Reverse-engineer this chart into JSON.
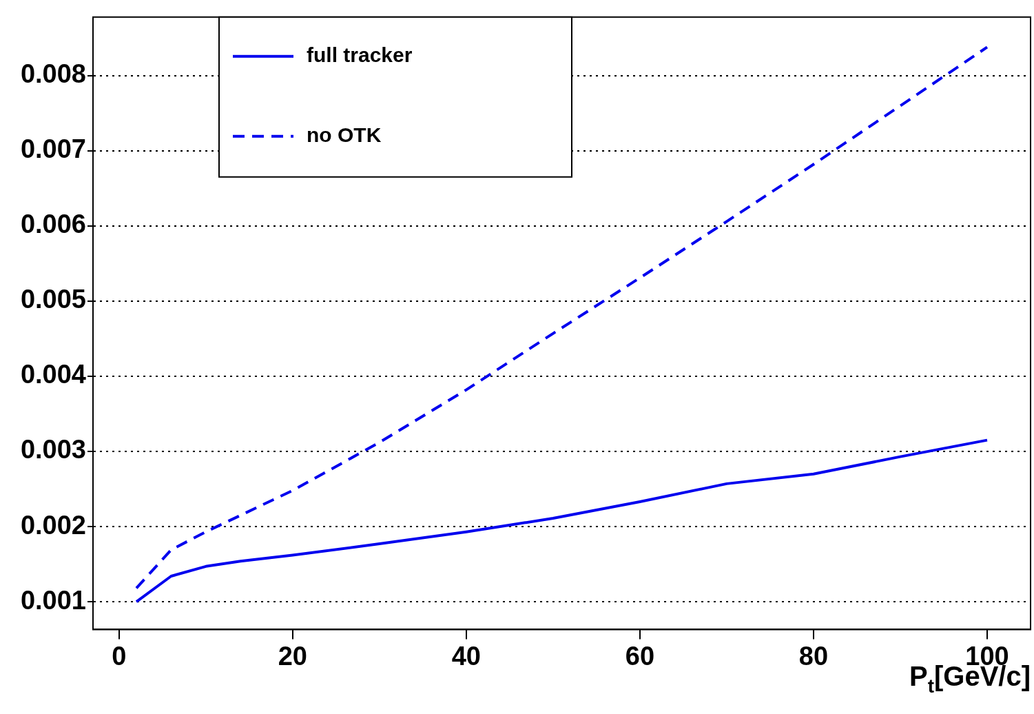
{
  "chart_data": {
    "type": "line",
    "xlabel": "P$_{t}$[GeV/c]",
    "xlim": [
      -3,
      105
    ],
    "xticks": [
      0,
      20,
      40,
      60,
      80,
      100
    ],
    "ylim": [
      0.00063,
      0.00878
    ],
    "yticks": [
      0.001,
      0.002,
      0.003,
      0.004,
      0.005,
      0.006,
      0.007,
      0.008
    ],
    "grid": "y",
    "legend": "top left",
    "marker": "none",
    "series": [
      {
        "name": "full tracker",
        "color": "#0000ee",
        "line_style": "solid",
        "x": [
          2,
          6,
          10,
          14,
          20,
          30,
          40,
          50,
          60,
          70,
          80,
          90,
          100
        ],
        "values": [
          0.001,
          0.00134,
          0.00147,
          0.00154,
          0.00162,
          0.00177,
          0.00193,
          0.00211,
          0.00233,
          0.00257,
          0.0027,
          0.00293,
          0.00315
        ]
      },
      {
        "name": "no OTK",
        "color": "#0000ee",
        "line_style": "dashed",
        "x": [
          2,
          6,
          10,
          20,
          30,
          40,
          50,
          60,
          70,
          80,
          90,
          100
        ],
        "values": [
          0.00118,
          0.00169,
          0.00193,
          0.00248,
          0.00312,
          0.00382,
          0.00457,
          0.00531,
          0.00606,
          0.00682,
          0.0076,
          0.00838
        ]
      }
    ]
  }
}
